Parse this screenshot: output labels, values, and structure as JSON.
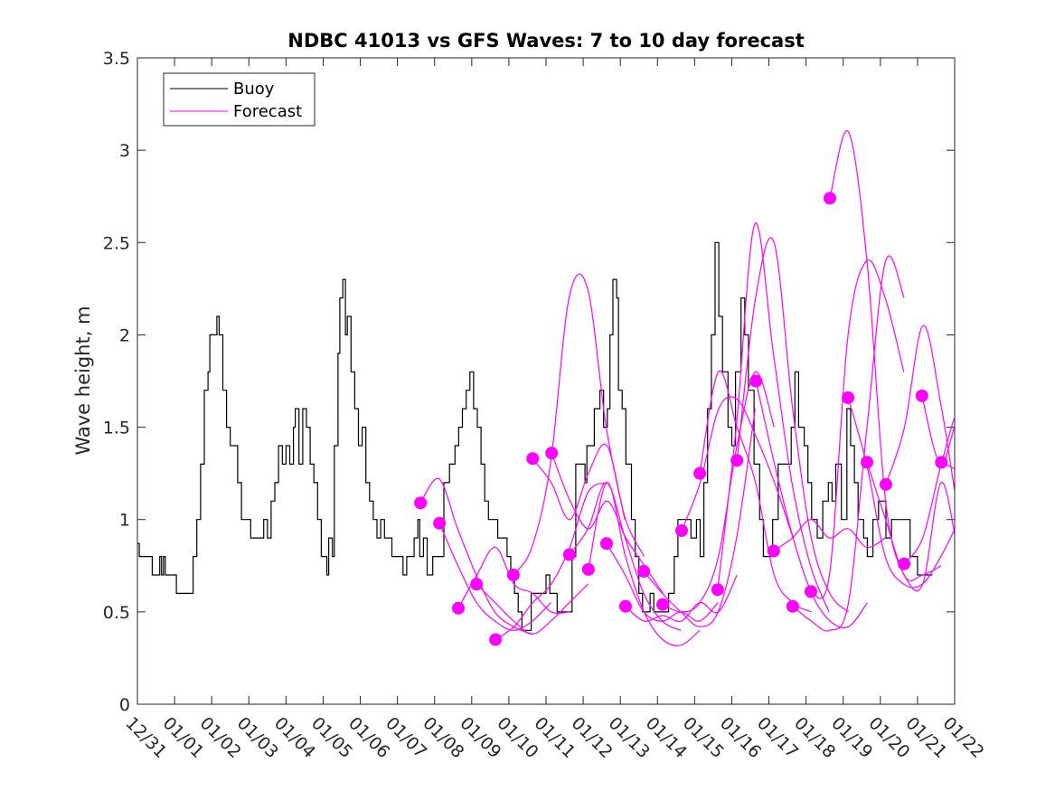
{
  "chart_data": {
    "type": "line",
    "title": "NDBC 41013 vs GFS Waves: 7 to 10 day forecast",
    "xlabel": "",
    "ylabel": "Wave height, m",
    "xlim": [
      0,
      22
    ],
    "ylim": [
      0,
      3.5
    ],
    "x_unit": "days since 12/31",
    "x_tick_labels": [
      "12/31",
      "01/01",
      "01/02",
      "01/03",
      "01/04",
      "01/05",
      "01/06",
      "01/07",
      "01/08",
      "01/09",
      "01/10",
      "01/11",
      "01/12",
      "01/13",
      "01/14",
      "01/15",
      "01/16",
      "01/17",
      "01/18",
      "01/19",
      "01/20",
      "01/21",
      "01/22"
    ],
    "y_ticks": [
      0,
      0.5,
      1,
      1.5,
      2,
      2.5,
      3,
      3.5
    ],
    "y_tick_labels": [
      "0",
      "0.5",
      "1",
      "1.5",
      "2",
      "2.5",
      "3",
      "3.5"
    ],
    "grid": false,
    "legend": {
      "placement": "top-left",
      "entries": [
        "Buoy",
        "Forecast"
      ]
    },
    "colors": {
      "buoy": "#000000",
      "forecast": "#ff00ff"
    },
    "buoy": [
      [
        0,
        0.87
      ],
      [
        0.05,
        0.8
      ],
      [
        0.3,
        0.8
      ],
      [
        0.4,
        0.7
      ],
      [
        0.6,
        0.8
      ],
      [
        0.65,
        0.7
      ],
      [
        0.7,
        0.8
      ],
      [
        0.75,
        0.7
      ],
      [
        1.0,
        0.7
      ],
      [
        1.05,
        0.6
      ],
      [
        1.3,
        0.6
      ],
      [
        1.4,
        0.6
      ],
      [
        1.5,
        0.8
      ],
      [
        1.6,
        1.0
      ],
      [
        1.7,
        1.3
      ],
      [
        1.8,
        1.7
      ],
      [
        1.9,
        1.8
      ],
      [
        1.95,
        2.0
      ],
      [
        2.1,
        2.0
      ],
      [
        2.14,
        2.1
      ],
      [
        2.2,
        2.0
      ],
      [
        2.3,
        1.7
      ],
      [
        2.4,
        1.5
      ],
      [
        2.5,
        1.4
      ],
      [
        2.6,
        1.4
      ],
      [
        2.7,
        1.2
      ],
      [
        2.8,
        1.0
      ],
      [
        3.0,
        1.0
      ],
      [
        3.05,
        0.9
      ],
      [
        3.3,
        0.9
      ],
      [
        3.4,
        1.0
      ],
      [
        3.5,
        0.9
      ],
      [
        3.6,
        1.1
      ],
      [
        3.7,
        1.2
      ],
      [
        3.8,
        1.4
      ],
      [
        3.9,
        1.3
      ],
      [
        4.0,
        1.4
      ],
      [
        4.1,
        1.3
      ],
      [
        4.2,
        1.5
      ],
      [
        4.25,
        1.6
      ],
      [
        4.35,
        1.3
      ],
      [
        4.45,
        1.6
      ],
      [
        4.55,
        1.5
      ],
      [
        4.65,
        1.3
      ],
      [
        4.75,
        1.2
      ],
      [
        4.85,
        1.0
      ],
      [
        4.95,
        0.8
      ],
      [
        5.05,
        0.8
      ],
      [
        5.1,
        0.7
      ],
      [
        5.15,
        0.9
      ],
      [
        5.25,
        0.8
      ],
      [
        5.3,
        1.4
      ],
      [
        5.4,
        1.9
      ],
      [
        5.45,
        2.2
      ],
      [
        5.53,
        2.3
      ],
      [
        5.6,
        2.0
      ],
      [
        5.65,
        2.1
      ],
      [
        5.75,
        1.8
      ],
      [
        5.85,
        1.6
      ],
      [
        5.95,
        1.4
      ],
      [
        6.05,
        1.5
      ],
      [
        6.15,
        1.2
      ],
      [
        6.25,
        1.1
      ],
      [
        6.35,
        1.0
      ],
      [
        6.45,
        0.9
      ],
      [
        6.55,
        1.0
      ],
      [
        6.65,
        0.9
      ],
      [
        6.75,
        0.9
      ],
      [
        6.85,
        0.8
      ],
      [
        7.05,
        0.8
      ],
      [
        7.15,
        0.7
      ],
      [
        7.25,
        0.8
      ],
      [
        7.45,
        0.9
      ],
      [
        7.55,
        1.0
      ],
      [
        7.6,
        0.8
      ],
      [
        7.7,
        0.9
      ],
      [
        7.8,
        0.7
      ],
      [
        7.95,
        0.8
      ],
      [
        8.1,
        0.8
      ],
      [
        8.25,
        1.2
      ],
      [
        8.4,
        1.3
      ],
      [
        8.55,
        1.4
      ],
      [
        8.65,
        1.5
      ],
      [
        8.75,
        1.6
      ],
      [
        8.85,
        1.7
      ],
      [
        8.95,
        1.8
      ],
      [
        9.05,
        1.6
      ],
      [
        9.15,
        1.5
      ],
      [
        9.25,
        1.3
      ],
      [
        9.35,
        1.1
      ],
      [
        9.45,
        1.0
      ],
      [
        9.6,
        1.0
      ],
      [
        9.7,
        0.9
      ],
      [
        9.85,
        0.9
      ],
      [
        9.95,
        0.8
      ],
      [
        10.05,
        0.7
      ],
      [
        10.15,
        0.6
      ],
      [
        10.25,
        0.5
      ],
      [
        10.35,
        0.4
      ],
      [
        10.5,
        0.4
      ],
      [
        10.6,
        0.6
      ],
      [
        10.9,
        0.6
      ],
      [
        11.0,
        0.7
      ],
      [
        11.1,
        0.6
      ],
      [
        11.2,
        0.6
      ],
      [
        11.3,
        0.5
      ],
      [
        11.55,
        0.5
      ],
      [
        11.7,
        0.8
      ],
      [
        11.8,
        1.3
      ],
      [
        11.95,
        1.3
      ],
      [
        12.05,
        1.2
      ],
      [
        12.1,
        1.4
      ],
      [
        12.3,
        1.6
      ],
      [
        12.45,
        1.7
      ],
      [
        12.55,
        1.5
      ],
      [
        12.65,
        1.6
      ],
      [
        12.72,
        2.0
      ],
      [
        12.8,
        2.3
      ],
      [
        12.9,
        2.2
      ],
      [
        12.95,
        1.7
      ],
      [
        13.05,
        1.6
      ],
      [
        13.15,
        1.3
      ],
      [
        13.3,
        1.0
      ],
      [
        13.4,
        0.8
      ],
      [
        13.5,
        0.6
      ],
      [
        13.6,
        0.5
      ],
      [
        13.8,
        0.6
      ],
      [
        13.9,
        0.5
      ],
      [
        14.1,
        0.5
      ],
      [
        14.3,
        0.6
      ],
      [
        14.45,
        0.8
      ],
      [
        14.55,
        1.0
      ],
      [
        14.8,
        1.0
      ],
      [
        14.9,
        0.9
      ],
      [
        15.05,
        1.0
      ],
      [
        15.15,
        0.8
      ],
      [
        15.25,
        1.2
      ],
      [
        15.35,
        1.6
      ],
      [
        15.45,
        2.0
      ],
      [
        15.55,
        2.5
      ],
      [
        15.65,
        2.1
      ],
      [
        15.75,
        1.8
      ],
      [
        15.9,
        1.5
      ],
      [
        16.0,
        1.4
      ],
      [
        16.1,
        1.8
      ],
      [
        16.25,
        2.2
      ],
      [
        16.35,
        2.0
      ],
      [
        16.45,
        1.7
      ],
      [
        16.6,
        1.3
      ],
      [
        16.75,
        1.0
      ],
      [
        16.85,
        0.8
      ],
      [
        17.0,
        0.8
      ],
      [
        17.1,
        1.0
      ],
      [
        17.25,
        1.3
      ],
      [
        17.5,
        1.3
      ],
      [
        17.6,
        1.5
      ],
      [
        17.7,
        1.8
      ],
      [
        17.8,
        1.5
      ],
      [
        17.95,
        1.4
      ],
      [
        18.05,
        1.2
      ],
      [
        18.15,
        1.0
      ],
      [
        18.3,
        0.9
      ],
      [
        18.45,
        1.1
      ],
      [
        18.6,
        1.2
      ],
      [
        18.7,
        1.1
      ],
      [
        18.8,
        1.3
      ],
      [
        18.95,
        1.0
      ],
      [
        19.1,
        1.6
      ],
      [
        19.2,
        1.4
      ],
      [
        19.3,
        1.2
      ],
      [
        19.4,
        1.0
      ],
      [
        19.55,
        0.9
      ],
      [
        19.65,
        0.8
      ],
      [
        19.8,
        1.0
      ],
      [
        19.95,
        1.1
      ],
      [
        20.15,
        0.9
      ],
      [
        20.3,
        1.0
      ],
      [
        20.65,
        1.0
      ],
      [
        20.8,
        0.8
      ],
      [
        21.0,
        0.7
      ],
      [
        21.4,
        0.7
      ]
    ],
    "forecast_step_days": 0.5,
    "forecasts": [
      {
        "start": 7.62,
        "values": [
          1.09,
          1.22,
          0.95,
          0.7,
          0.5,
          0.42,
          0.38
        ]
      },
      {
        "start": 8.13,
        "values": [
          0.98,
          0.75,
          0.55,
          0.45,
          0.4,
          0.45,
          0.55
        ]
      },
      {
        "start": 8.64,
        "values": [
          0.52,
          0.7,
          0.85,
          0.65,
          0.6,
          0.5,
          0.5
        ]
      },
      {
        "start": 9.13,
        "values": [
          0.65,
          0.55,
          0.45,
          0.38,
          0.45,
          0.55,
          0.65
        ]
      },
      {
        "start": 9.64,
        "values": [
          0.35,
          0.42,
          0.55,
          0.65,
          0.85,
          1.15,
          1.2
        ]
      },
      {
        "start": 10.12,
        "values": [
          0.7,
          0.85,
          1.3,
          2.2,
          2.25,
          1.5,
          1.0
        ]
      },
      {
        "start": 10.64,
        "values": [
          1.33,
          1.2,
          1.0,
          1.25,
          1.4,
          1.0,
          0.8
        ]
      },
      {
        "start": 11.15,
        "values": [
          1.36,
          1.1,
          0.95,
          1.1,
          0.9,
          0.75,
          0.6
        ]
      },
      {
        "start": 11.63,
        "values": [
          0.81,
          0.95,
          1.2,
          0.9,
          0.6,
          0.45,
          0.4
        ]
      },
      {
        "start": 12.14,
        "values": [
          0.73,
          1.2,
          0.8,
          0.5,
          0.35,
          0.32,
          0.4
        ]
      },
      {
        "start": 12.63,
        "values": [
          0.87,
          0.7,
          0.5,
          0.45,
          0.5,
          0.45,
          0.55
        ]
      },
      {
        "start": 13.14,
        "values": [
          0.53,
          0.45,
          0.48,
          0.45,
          0.55,
          0.5,
          0.7
        ]
      },
      {
        "start": 13.63,
        "values": [
          0.72,
          0.6,
          0.5,
          0.42,
          0.5,
          0.9,
          1.6
        ]
      },
      {
        "start": 14.14,
        "values": [
          0.54,
          0.5,
          0.55,
          0.8,
          1.4,
          1.8,
          1.5
        ]
      },
      {
        "start": 14.65,
        "values": [
          0.94,
          1.2,
          1.6,
          1.65,
          1.45,
          1.2,
          0.9
        ]
      },
      {
        "start": 15.14,
        "values": [
          1.25,
          1.8,
          1.5,
          1.2,
          0.7,
          0.55,
          0.5
        ]
      },
      {
        "start": 15.62,
        "values": [
          0.62,
          1.5,
          2.6,
          1.9,
          1.2,
          0.75,
          0.5
        ]
      },
      {
        "start": 16.14,
        "values": [
          1.32,
          2.2,
          2.5,
          1.6,
          0.9,
          0.6,
          0.5
        ]
      },
      {
        "start": 16.65,
        "values": [
          1.75,
          1.3,
          0.9,
          0.6,
          0.45,
          0.42,
          0.55
        ]
      },
      {
        "start": 17.13,
        "values": [
          0.83,
          0.9,
          1.0,
          0.9,
          0.95,
          0.85,
          0.9
        ]
      },
      {
        "start": 17.64,
        "values": [
          0.53,
          0.45,
          0.4,
          0.55,
          1.5,
          2.4,
          2.2
        ]
      },
      {
        "start": 18.13,
        "values": [
          0.61,
          0.7,
          2.0,
          2.4,
          2.2,
          1.8
        ]
      },
      {
        "start": 18.64,
        "values": [
          2.74,
          3.1,
          2.4,
          1.1,
          0.7,
          0.7,
          0.75
        ]
      },
      {
        "start": 19.13,
        "values": [
          1.66,
          1.3,
          0.8,
          0.65,
          0.65,
          0.8,
          1.0
        ]
      },
      {
        "start": 19.64,
        "values": [
          1.31,
          1.0,
          0.7,
          0.65,
          1.2,
          0.8,
          0.65
        ]
      },
      {
        "start": 20.15,
        "values": [
          1.19,
          1.5,
          2.05,
          1.6,
          1.0,
          0.8,
          0.75
        ]
      },
      {
        "start": 20.64,
        "values": [
          0.76,
          0.9,
          1.3,
          1.6,
          1.45,
          1.0,
          0.8
        ]
      },
      {
        "start": 21.12,
        "values": [
          1.67,
          1.3,
          1.55,
          1.4,
          1.2,
          1.0,
          0.9
        ]
      },
      {
        "start": 21.64,
        "values": [
          1.31,
          1.25,
          1.1,
          0.85
        ]
      }
    ]
  }
}
